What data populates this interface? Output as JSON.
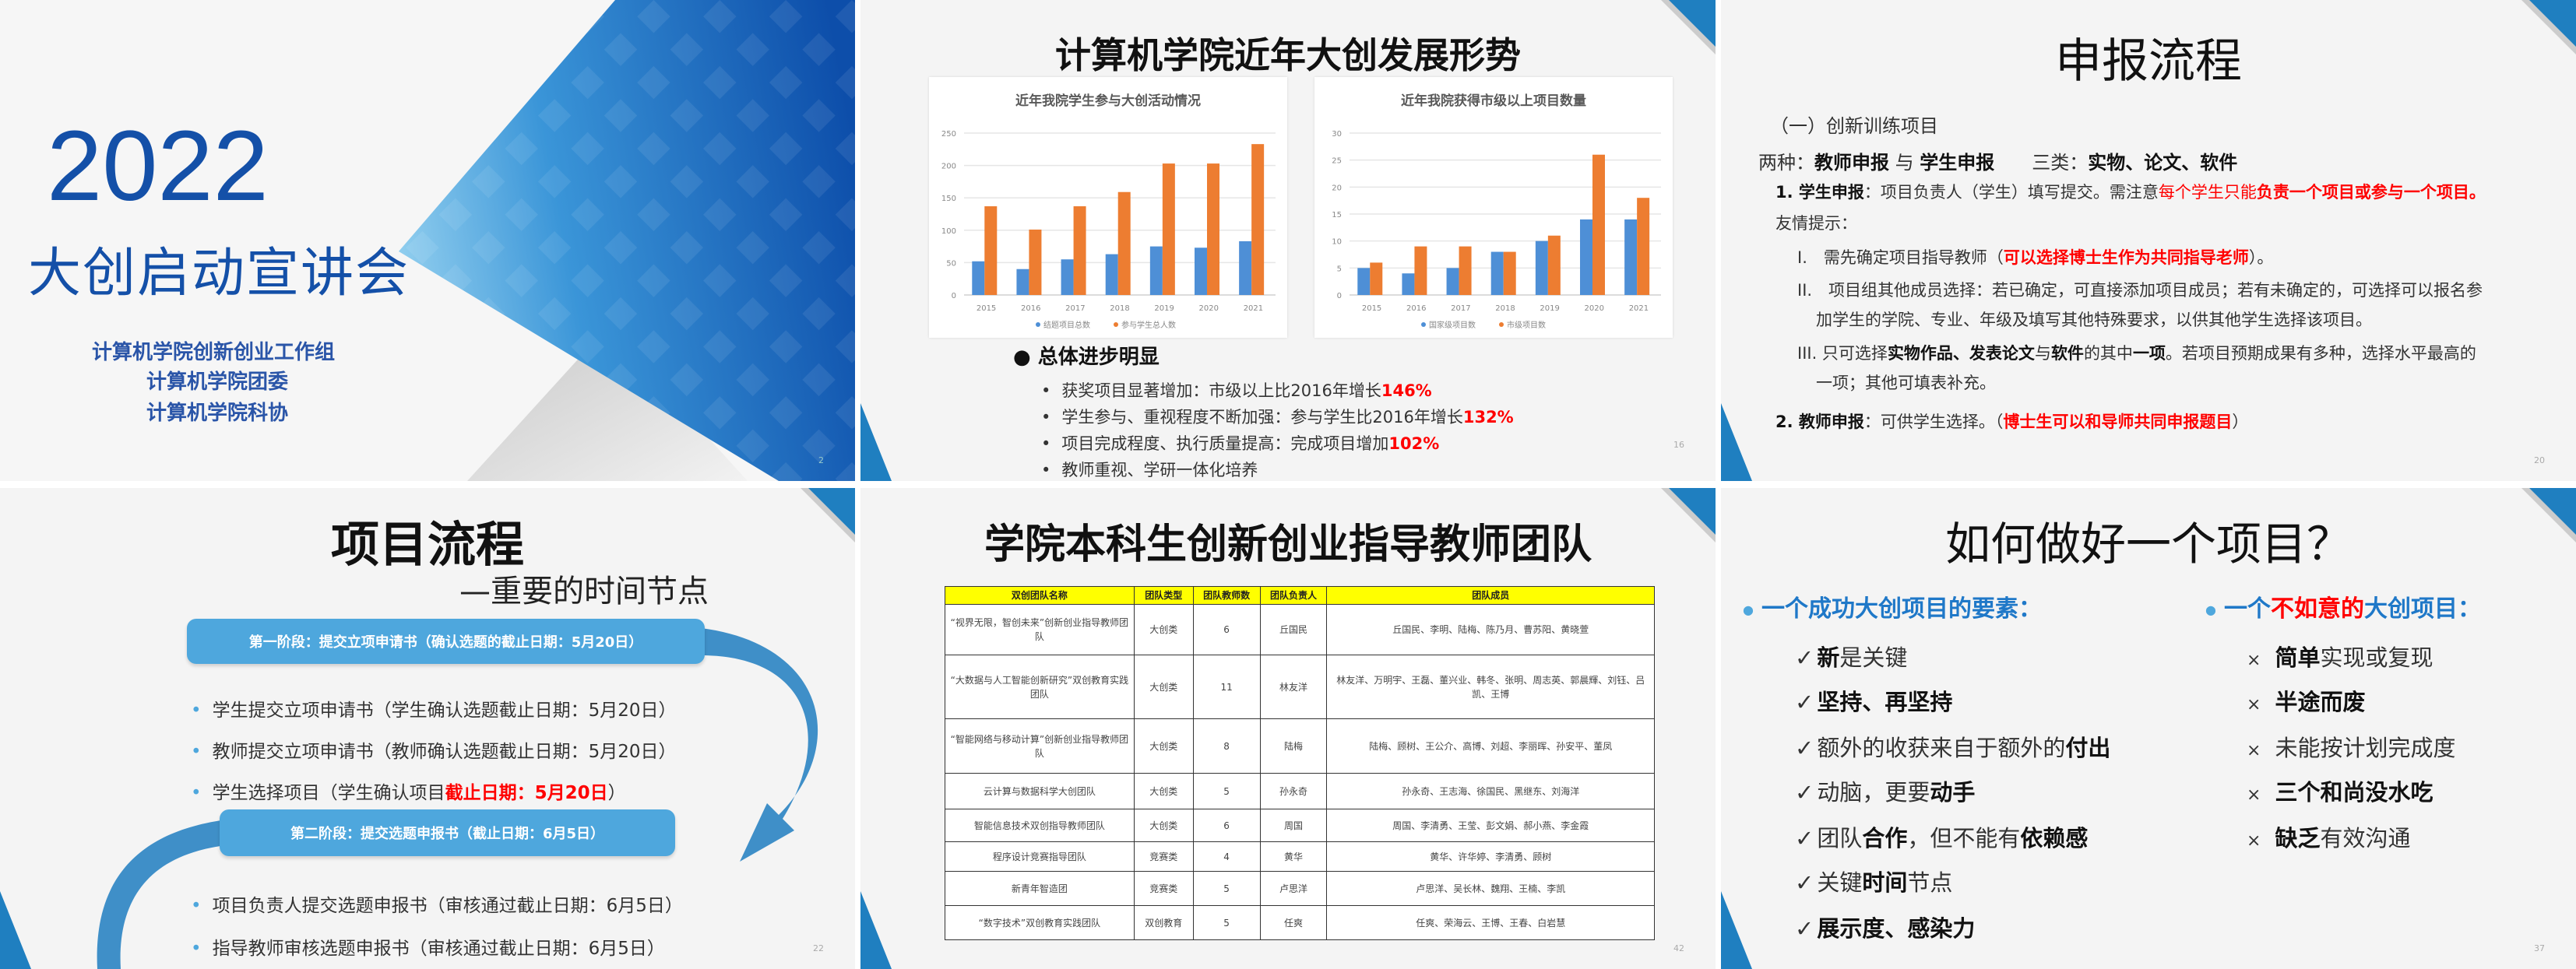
{
  "colors": {
    "brand_blue": "#1450a8",
    "accent_blue": "#2a8ad2",
    "bar_blue": "#4e8fd6",
    "bar_orange": "#ed7d31",
    "emphasis_red": "#ff0000",
    "table_header": "#ffff00"
  },
  "slide1": {
    "year": "2022",
    "title": "大创启动宣讲会",
    "orgs": [
      "计算机学院创新创业工作组",
      "计算机学院团委",
      "计算机学院科协"
    ],
    "page": "2"
  },
  "slide2": {
    "title": "计算机学院近年大创发展形势",
    "page": "16",
    "summary_heading": "总体进步明显",
    "bullets": [
      [
        {
          "t": "获奖项目显著增加：市级以上比2016年增长",
          "s": ""
        },
        {
          "t": "146%",
          "s": "rb"
        }
      ],
      [
        {
          "t": "学生参与、重视程度不断加强：参与学生比2016年增长",
          "s": ""
        },
        {
          "t": "132%",
          "s": "rb"
        }
      ],
      [
        {
          "t": "项目完成程度、执行质量提高：完成项目增加",
          "s": ""
        },
        {
          "t": "102%",
          "s": "rb"
        }
      ],
      [
        {
          "t": "教师重视、学研一体化培养",
          "s": ""
        }
      ]
    ]
  },
  "chart_data": [
    {
      "type": "bar",
      "title": "近年我院学生参与大创活动情况",
      "categories": [
        "2015",
        "2016",
        "2017",
        "2018",
        "2019",
        "2020",
        "2021"
      ],
      "series": [
        {
          "name": "结题项目总数",
          "values": [
            52,
            40,
            55,
            63,
            75,
            73,
            83
          ]
        },
        {
          "name": "参与学生总人数",
          "values": [
            137,
            101,
            137,
            159,
            203,
            203,
            233
          ]
        }
      ],
      "ylim": [
        0,
        250
      ],
      "yticks": [
        0,
        50,
        100,
        150,
        200,
        250
      ],
      "grid": true,
      "legend": "bottom"
    },
    {
      "type": "bar",
      "title": "近年我院获得市级以上项目数量",
      "categories": [
        "2015",
        "2016",
        "2017",
        "2018",
        "2019",
        "2020",
        "2021"
      ],
      "series": [
        {
          "name": "国家级项目数",
          "values": [
            5,
            4,
            5,
            8,
            10,
            14,
            14
          ]
        },
        {
          "name": "市级项目数",
          "values": [
            6,
            9,
            9,
            8,
            11,
            26,
            18
          ]
        }
      ],
      "ylim": [
        0,
        30
      ],
      "yticks": [
        0,
        5,
        10,
        15,
        20,
        25,
        30
      ],
      "grid": true,
      "legend": "bottom"
    }
  ],
  "slide3": {
    "title": "申报流程",
    "page": "20",
    "lines": [
      [
        {
          "t": "（一）创新训练项目",
          "s": ""
        }
      ],
      [
        {
          "t": "两种：",
          "s": ""
        },
        {
          "t": "教师申报",
          "s": "b"
        },
        {
          "t": " 与 ",
          "s": ""
        },
        {
          "t": "学生申报",
          "s": "b"
        },
        {
          "t": "　　三类：",
          "s": ""
        },
        {
          "t": "实物、论文、软件",
          "s": "b"
        }
      ],
      [
        {
          "t": "1. 学生申报",
          "s": "b"
        },
        {
          "t": "：项目负责人（学生）填写提交。需注意",
          "s": ""
        },
        {
          "t": "每个学生只能",
          "s": "r"
        },
        {
          "t": "负责一个项目或参与一个项目。",
          "s": "rb"
        }
      ],
      [
        {
          "t": "友情提示：",
          "s": ""
        }
      ],
      [
        {
          "t": "I.　需先确定项目指导教师（",
          "s": ""
        },
        {
          "t": "可以选择博士生作为共同指导老师",
          "s": "rb"
        },
        {
          "t": "）。",
          "s": ""
        }
      ],
      [
        {
          "t": "II.　项目组其他成员选择：若已确定，可直接添加项目成员；若有未确定的，可选择可以报名参",
          "s": ""
        }
      ],
      [
        {
          "t": "加学生的学院、专业、年级及填写其他特殊要求，以供其他学生选择该项目。",
          "s": ""
        }
      ],
      [
        {
          "t": "III. 只可选择",
          "s": ""
        },
        {
          "t": "实物作品、发表论文",
          "s": "b"
        },
        {
          "t": "与",
          "s": ""
        },
        {
          "t": "软件",
          "s": "b"
        },
        {
          "t": "的其中",
          "s": ""
        },
        {
          "t": "一项",
          "s": "b"
        },
        {
          "t": "。若项目预期成果有多种，选择水平最高的",
          "s": ""
        }
      ],
      [
        {
          "t": "一项；其他可填表补充。",
          "s": ""
        }
      ],
      [
        {
          "t": "2. 教师申报",
          "s": "b"
        },
        {
          "t": "：可供学生选择。（",
          "s": ""
        },
        {
          "t": "博士生可以和导师共同申报题目",
          "s": "rb"
        },
        {
          "t": "）",
          "s": ""
        }
      ]
    ]
  },
  "slide4": {
    "title": "项目流程",
    "subtitle": "—重要的时间节点",
    "page": "22",
    "stage1": "第一阶段：提交立项申请书（确认选题的截止日期：5月20日）",
    "stage1_items": [
      [
        {
          "t": "学生提交立项申请书（学生确认选题截止日期：5月20日）",
          "s": ""
        }
      ],
      [
        {
          "t": "教师提交立项申请书（教师确认选题截止日期：5月20日）",
          "s": ""
        }
      ],
      [
        {
          "t": "学生选择项目（学生确认项目",
          "s": ""
        },
        {
          "t": "截止日期：5月20日",
          "s": "rb"
        },
        {
          "t": "）",
          "s": ""
        }
      ]
    ],
    "stage2": "第二阶段：提交选题申报书（截止日期：6月5日）",
    "stage2_items": [
      [
        {
          "t": "项目负责人提交选题申报书（审核通过截止日期：6月5日）",
          "s": ""
        }
      ],
      [
        {
          "t": "指导教师审核选题申报书（审核通过截止日期：6月5日）",
          "s": ""
        }
      ]
    ]
  },
  "slide5": {
    "title": "学院本科生创新创业指导教师团队",
    "page": "42",
    "headers": [
      "双创团队名称",
      "团队类型",
      "团队教师数",
      "团队负责人",
      "团队成员"
    ],
    "rows": [
      [
        "“视界无限，智创未来”创新创业指导教师团队",
        "大创类",
        "6",
        "丘国民",
        "丘国民、李明、陆梅、陈乃月、曹苏阳、黄晓萱"
      ],
      [
        "“大数据与人工智能创新研究”双创教育实践团队",
        "大创类",
        "11",
        "林友洋",
        "林友洋、万明宇、王磊、董兴业、韩冬、张明、周志英、郭晨輝、刘钰、吕凯、王博"
      ],
      [
        "“智能网络与移动计算”创新创业指导教师团队",
        "大创类",
        "8",
        "陆梅",
        "陆梅、顾树、王公介、高博、刘超、李丽晖、孙安平、董凤"
      ],
      [
        "云计算与数据科学大创团队",
        "大创类",
        "5",
        "孙永奇",
        "孙永奇、王志海、徐国民、黑继东、刘海洋"
      ],
      [
        "智能信息技术双创指导教师团队",
        "大创类",
        "6",
        "周国",
        "周国、李清勇、王莹、彭文娟、郝小燕、李金霞"
      ],
      [
        "程序设计竞赛指导团队",
        "竞赛类",
        "4",
        "黄华",
        "黄华、许华婷、李清勇、顾树"
      ],
      [
        "新青年智造团",
        "竞赛类",
        "5",
        "卢思洋",
        "卢思洋、吴长林、魏翔、王楠、李凯"
      ],
      [
        "“数字技术”双创教育实践团队",
        "双创教育",
        "5",
        "任爽",
        "任爽、荣海云、王博、王春、白岩慧"
      ]
    ]
  },
  "slide6": {
    "title": "如何做好一个项目？",
    "page": "37",
    "left_heading": [
      {
        "t": "一个成功大创项目的要素：",
        "s": "bl"
      }
    ],
    "left_items": [
      [
        {
          "t": "新",
          "s": "b"
        },
        {
          "t": "是关键",
          "s": ""
        }
      ],
      [
        {
          "t": "坚持、再坚持",
          "s": "b"
        }
      ],
      [
        {
          "t": "额外的收获来自于额外的",
          "s": ""
        },
        {
          "t": "付出",
          "s": "b"
        }
      ],
      [
        {
          "t": "动脑，更要",
          "s": ""
        },
        {
          "t": "动手",
          "s": "b"
        }
      ],
      [
        {
          "t": "团队",
          "s": ""
        },
        {
          "t": "合作",
          "s": "b"
        },
        {
          "t": "，但不能有",
          "s": ""
        },
        {
          "t": "依赖感",
          "s": "b"
        }
      ],
      [
        {
          "t": "关键",
          "s": ""
        },
        {
          "t": "时间",
          "s": "b"
        },
        {
          "t": "节点",
          "s": ""
        }
      ],
      [
        {
          "t": "展示度、感染力",
          "s": "b"
        }
      ]
    ],
    "right_heading": [
      {
        "t": "一个",
        "s": "bl"
      },
      {
        "t": "不如意的",
        "s": "rb"
      },
      {
        "t": "大创项目：",
        "s": "bl"
      }
    ],
    "right_items": [
      [
        {
          "t": "简单",
          "s": "b"
        },
        {
          "t": "实现或复现",
          "s": ""
        }
      ],
      [
        {
          "t": "半途而废",
          "s": "b"
        }
      ],
      [
        {
          "t": "未能按计划完成度",
          "s": ""
        }
      ],
      [
        {
          "t": "三个和尚没水吃",
          "s": "b"
        }
      ],
      [
        {
          "t": "缺乏",
          "s": "b"
        },
        {
          "t": "有效沟通",
          "s": ""
        }
      ]
    ],
    "check_mark": "✓",
    "cross_mark": "×"
  }
}
